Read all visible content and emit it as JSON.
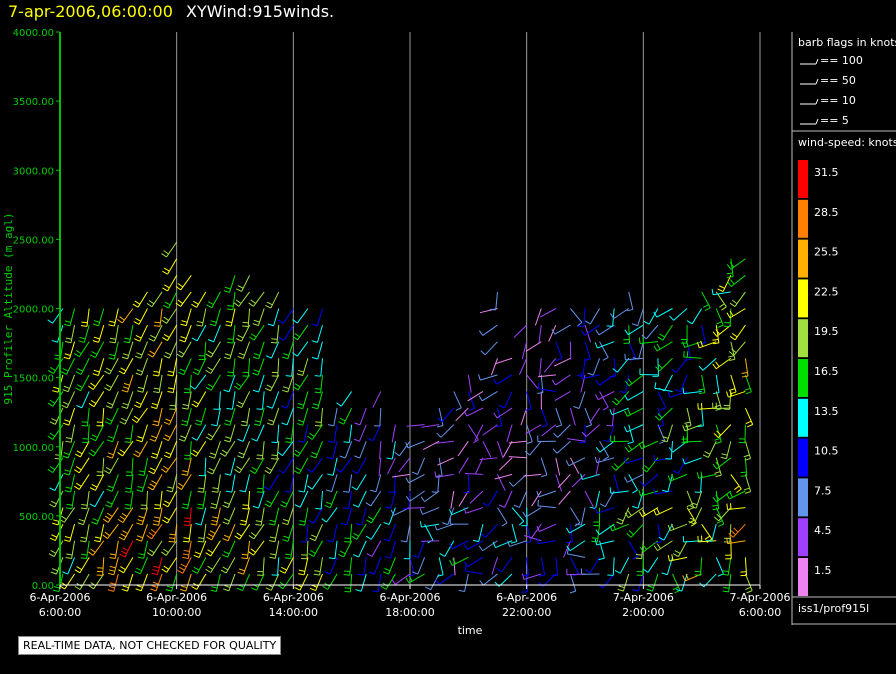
{
  "header": {
    "time": "7-apr-2006,06:00:00",
    "product": "XYWind:915winds."
  },
  "footer": {
    "note": "REAL-TIME DATA, NOT CHECKED FOR QUALITY",
    "station": "iss1/prof915l"
  },
  "legend": {
    "barb_title": "barb flags in knots",
    "barbs": [
      "== 100",
      "== 50",
      "== 10",
      "== 5"
    ],
    "speed_title": "wind-speed: knots",
    "speed_bins": [
      {
        "label": "31.5",
        "color": "#ff0000"
      },
      {
        "label": "28.5",
        "color": "#ff8000"
      },
      {
        "label": "25.5",
        "color": "#ffb000"
      },
      {
        "label": "22.5",
        "color": "#ffff00"
      },
      {
        "label": "19.5",
        "color": "#a0e040"
      },
      {
        "label": "16.5",
        "color": "#00e000"
      },
      {
        "label": "13.5",
        "color": "#00ffff"
      },
      {
        "label": "10.5",
        "color": "#0000ff"
      },
      {
        "label": "7.5",
        "color": "#6495ed"
      },
      {
        "label": "4.5",
        "color": "#a040ff"
      },
      {
        "label": "1.5",
        "color": "#ee82ee"
      }
    ]
  },
  "chart_data": {
    "type": "scatter",
    "title": "XYWind:915winds.",
    "xlabel": "time",
    "ylabel": "915 Profiler Altitude (m agl)",
    "ylim": [
      0,
      4000
    ],
    "xlim": [
      "6-Apr-2006 06:00:00",
      "7-Apr-2006 06:00:00"
    ],
    "x_ticks": [
      {
        "line1": "6-Apr-2006",
        "line2": "6:00:00"
      },
      {
        "line1": "6-Apr-2006",
        "line2": "10:00:00"
      },
      {
        "line1": "6-Apr-2006",
        "line2": "14:00:00"
      },
      {
        "line1": "6-Apr-2006",
        "line2": "18:00:00"
      },
      {
        "line1": "6-Apr-2006",
        "line2": "22:00:00"
      },
      {
        "line1": "7-Apr-2006",
        "line2": "2:00:00"
      },
      {
        "line1": "7-Apr-2006",
        "line2": "6:00:00"
      }
    ],
    "y_ticks": [
      "0.00",
      "500.00",
      "1000.00",
      "1500.00",
      "2000.00",
      "2500.00",
      "3000.00",
      "3500.00",
      "4000.00"
    ],
    "grid": "vertical",
    "columns": [
      {
        "hour": 0.1,
        "top": 2050,
        "speed": 17
      },
      {
        "hour": 0.5,
        "top": 2000,
        "speed": 17
      },
      {
        "hour": 1.0,
        "top": 2000,
        "speed": 18
      },
      {
        "hour": 1.5,
        "top": 2100,
        "speed": 19
      },
      {
        "hour": 2.0,
        "top": 2100,
        "speed": 20
      },
      {
        "hour": 2.5,
        "top": 2050,
        "speed": 21
      },
      {
        "hour": 3.0,
        "top": 2150,
        "speed": 20
      },
      {
        "hour": 3.5,
        "top": 2150,
        "speed": 21
      },
      {
        "hour": 4.0,
        "top": 2500,
        "speed": 22
      },
      {
        "hour": 4.5,
        "top": 2250,
        "speed": 20
      },
      {
        "hour": 5.0,
        "top": 2200,
        "speed": 18
      },
      {
        "hour": 5.5,
        "top": 2150,
        "speed": 17
      },
      {
        "hour": 6.0,
        "top": 2350,
        "speed": 18
      },
      {
        "hour": 6.5,
        "top": 2250,
        "speed": 17
      },
      {
        "hour": 7.0,
        "top": 2200,
        "speed": 16
      },
      {
        "hour": 7.5,
        "top": 2150,
        "speed": 16
      },
      {
        "hour": 8.0,
        "top": 2100,
        "speed": 15
      },
      {
        "hour": 8.5,
        "top": 2100,
        "speed": 15
      },
      {
        "hour": 9.0,
        "top": 2000,
        "speed": 14
      },
      {
        "hour": 9.5,
        "top": 1300,
        "speed": 12
      },
      {
        "hour": 10.0,
        "top": 1400,
        "speed": 11
      },
      {
        "hour": 10.5,
        "top": 1300,
        "speed": 10
      },
      {
        "hour": 11.0,
        "top": 1400,
        "speed": 9
      },
      {
        "hour": 11.5,
        "top": 1200,
        "speed": 8
      },
      {
        "hour": 12.0,
        "top": 1100,
        "speed": 7
      },
      {
        "hour": 12.5,
        "top": 1200,
        "speed": 7
      },
      {
        "hour": 13.0,
        "top": 1300,
        "speed": 6
      },
      {
        "hour": 13.5,
        "top": 1400,
        "speed": 6
      },
      {
        "hour": 14.0,
        "top": 1600,
        "speed": 6
      },
      {
        "hour": 14.5,
        "top": 1500,
        "speed": 5
      },
      {
        "hour": 15.0,
        "top": 2200,
        "speed": 5
      },
      {
        "hour": 15.5,
        "top": 1700,
        "speed": 5
      },
      {
        "hour": 16.0,
        "top": 1900,
        "speed": 5
      },
      {
        "hour": 16.5,
        "top": 2050,
        "speed": 5
      },
      {
        "hour": 17.0,
        "top": 2050,
        "speed": 5
      },
      {
        "hour": 17.5,
        "top": 2050,
        "speed": 6
      },
      {
        "hour": 18.0,
        "top": 2100,
        "speed": 7
      },
      {
        "hour": 18.5,
        "top": 2100,
        "speed": 8
      },
      {
        "hour": 19.0,
        "top": 2100,
        "speed": 9
      },
      {
        "hour": 19.5,
        "top": 2150,
        "speed": 11
      },
      {
        "hour": 20.0,
        "top": 2100,
        "speed": 12
      },
      {
        "hour": 20.5,
        "top": 2050,
        "speed": 13
      },
      {
        "hour": 21.0,
        "top": 2000,
        "speed": 14
      },
      {
        "hour": 21.5,
        "top": 2100,
        "speed": 15
      },
      {
        "hour": 22.0,
        "top": 2150,
        "speed": 16
      },
      {
        "hour": 22.5,
        "top": 2150,
        "speed": 17
      },
      {
        "hour": 23.0,
        "top": 2400,
        "speed": 18
      },
      {
        "hour": 23.5,
        "top": 2400,
        "speed": 20
      }
    ]
  }
}
